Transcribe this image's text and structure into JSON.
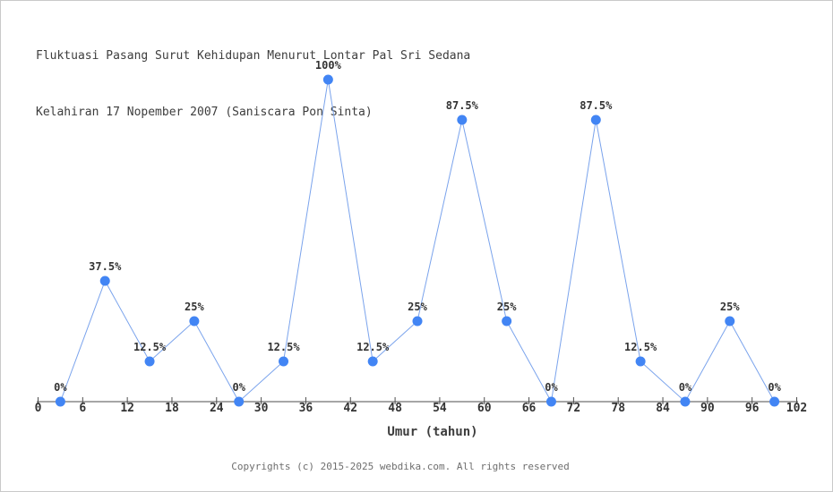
{
  "page": {
    "background": "#ffffff",
    "border_color": "#c9c9c9"
  },
  "chart_data": {
    "type": "line",
    "title": "Fluktuasi Pasang Surut Kehidupan Menurut Lontar Pal Sri Sedana Kelahiran 17 Nopember 2007 (Saniscara Pon Sinta)",
    "title_lines": [
      "Fluktuasi Pasang Surut Kehidupan Menurut Lontar Pal Sri Sedana",
      "Kelahiran 17 Nopember 2007 (Saniscara Pon Sinta)"
    ],
    "xlabel": "Umur (tahun)",
    "ylabel": "",
    "x": [
      3,
      9,
      15,
      21,
      27,
      33,
      39,
      45,
      51,
      57,
      63,
      69,
      75,
      81,
      87,
      93,
      99
    ],
    "values": [
      0,
      37.5,
      12.5,
      25,
      0,
      12.5,
      100,
      12.5,
      25,
      87.5,
      25,
      0,
      87.5,
      12.5,
      0,
      25,
      0
    ],
    "point_labels": [
      "0%",
      "37.5%",
      "12.5%",
      "25%",
      "0%",
      "12.5%",
      "100%",
      "12.5%",
      "25%",
      "87.5%",
      "25%",
      "0%",
      "87.5%",
      "12.5%",
      "0%",
      "25%",
      "0%"
    ],
    "x_ticks": [
      0,
      6,
      12,
      18,
      24,
      30,
      36,
      42,
      48,
      54,
      60,
      66,
      72,
      78,
      84,
      90,
      96,
      102
    ],
    "xlim": [
      0,
      102
    ],
    "ylim": [
      0,
      100
    ],
    "grid": false,
    "legend": "none",
    "colors": {
      "marker": "#4285f4",
      "line": "#7aa3ec",
      "axis": "#4d4d4d",
      "tick_text": "#333333",
      "title_text": "#3d3d3d",
      "copyright_text": "#6e6e6e"
    }
  },
  "footer": {
    "copyright": "Copyrights (c) 2015-2025 webdika.com. All rights reserved"
  }
}
